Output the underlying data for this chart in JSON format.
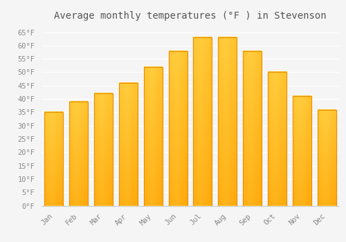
{
  "title": "Average monthly temperatures (°F ) in Stevenson",
  "months": [
    "Jan",
    "Feb",
    "Mar",
    "Apr",
    "May",
    "Jun",
    "Jul",
    "Aug",
    "Sep",
    "Oct",
    "Nov",
    "Dec"
  ],
  "values": [
    35,
    39,
    42,
    46,
    52,
    58,
    63,
    63,
    58,
    50,
    41,
    36
  ],
  "bar_color_light": "#FFD04E",
  "bar_color_dark": "#FFA000",
  "bar_edge_color": "#E89000",
  "ylim": [
    0,
    68
  ],
  "yticks": [
    0,
    5,
    10,
    15,
    20,
    25,
    30,
    35,
    40,
    45,
    50,
    55,
    60,
    65
  ],
  "ytick_labels": [
    "0°F",
    "5°F",
    "10°F",
    "15°F",
    "20°F",
    "25°F",
    "30°F",
    "35°F",
    "40°F",
    "45°F",
    "50°F",
    "55°F",
    "60°F",
    "65°F"
  ],
  "background_color": "#f5f5f5",
  "plot_bg_color": "#f5f5f5",
  "grid_color": "#ffffff",
  "title_fontsize": 10,
  "tick_fontsize": 7.5,
  "tick_color": "#888888",
  "font_family": "monospace",
  "bar_width": 0.75
}
